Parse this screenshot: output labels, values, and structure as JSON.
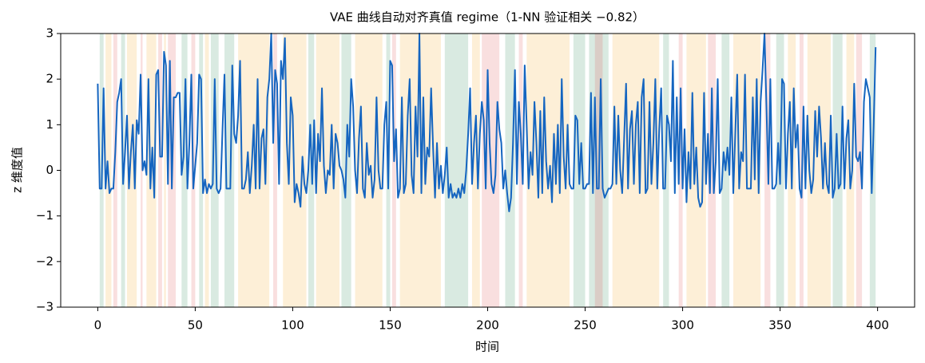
{
  "chart_data": {
    "type": "line",
    "title": "VAE 曲线自动对齐真值 regime（1-NN 验证相关 −0.82）",
    "xlabel": "时间",
    "ylabel": "z 维度值",
    "xlim": [
      -19,
      419
    ],
    "ylim": [
      -3,
      3
    ],
    "xticks": [
      0,
      50,
      100,
      150,
      200,
      250,
      300,
      350,
      400
    ],
    "yticks": [
      {
        "value": -3,
        "label": "−3"
      },
      {
        "value": -2,
        "label": "−2"
      },
      {
        "value": -1,
        "label": "−1"
      },
      0,
      1,
      2,
      3
    ],
    "grid": false,
    "x": [
      0,
      1,
      2,
      3,
      4,
      5,
      6,
      7,
      8,
      9,
      10,
      11,
      12,
      13,
      14,
      15,
      16,
      17,
      18,
      19,
      20,
      21,
      22,
      23,
      24,
      25,
      26,
      27,
      28,
      29,
      30,
      31,
      32,
      33,
      34,
      35,
      36,
      37,
      38,
      39,
      40,
      41,
      42,
      43,
      44,
      45,
      46,
      47,
      48,
      49,
      50,
      51,
      52,
      53,
      54,
      55,
      56,
      57,
      58,
      59,
      60,
      61,
      62,
      63,
      64,
      65,
      66,
      67,
      68,
      69,
      70,
      71,
      72,
      73,
      74,
      75,
      76,
      77,
      78,
      79,
      80,
      81,
      82,
      83,
      84,
      85,
      86,
      87,
      88,
      89,
      90,
      91,
      92,
      93,
      94,
      95,
      96,
      97,
      98,
      99,
      100,
      101,
      102,
      103,
      104,
      105,
      106,
      107,
      108,
      109,
      110,
      111,
      112,
      113,
      114,
      115,
      116,
      117,
      118,
      119,
      120,
      121,
      122,
      123,
      124,
      125,
      126,
      127,
      128,
      129,
      130,
      131,
      132,
      133,
      134,
      135,
      136,
      137,
      138,
      139,
      140,
      141,
      142,
      143,
      144,
      145,
      146,
      147,
      148,
      149,
      150,
      151,
      152,
      153,
      154,
      155,
      156,
      157,
      158,
      159,
      160,
      161,
      162,
      163,
      164,
      165,
      166,
      167,
      168,
      169,
      170,
      171,
      172,
      173,
      174,
      175,
      176,
      177,
      178,
      179,
      180,
      181,
      182,
      183,
      184,
      185,
      186,
      187,
      188,
      189,
      190,
      191,
      192,
      193,
      194,
      195,
      196,
      197,
      198,
      199,
      200,
      201,
      202,
      203,
      204,
      205,
      206,
      207,
      208,
      209,
      210,
      211,
      212,
      213,
      214,
      215,
      216,
      217,
      218,
      219,
      220,
      221,
      222,
      223,
      224,
      225,
      226,
      227,
      228,
      229,
      230,
      231,
      232,
      233,
      234,
      235,
      236,
      237,
      238,
      239,
      240,
      241,
      242,
      243,
      244,
      245,
      246,
      247,
      248,
      249,
      250,
      251,
      252,
      253,
      254,
      255,
      256,
      257,
      258,
      259,
      260,
      261,
      262,
      263,
      264,
      265,
      266,
      267,
      268,
      269,
      270,
      271,
      272,
      273,
      274,
      275,
      276,
      277,
      278,
      279,
      280,
      281,
      282,
      283,
      284,
      285,
      286,
      287,
      288,
      289,
      290,
      291,
      292,
      293,
      294,
      295,
      296,
      297,
      298,
      299,
      300,
      301,
      302,
      303,
      304,
      305,
      306,
      307,
      308,
      309,
      310,
      311,
      312,
      313,
      314,
      315,
      316,
      317,
      318,
      319,
      320,
      321,
      322,
      323,
      324,
      325,
      326,
      327,
      328,
      329,
      330,
      331,
      332,
      333,
      334,
      335,
      336,
      337,
      338,
      339,
      340,
      341,
      342,
      343,
      344,
      345,
      346,
      347,
      348,
      349,
      350,
      351,
      352,
      353,
      354,
      355,
      356,
      357,
      358,
      359,
      360,
      361,
      362,
      363,
      364,
      365,
      366,
      367,
      368,
      369,
      370,
      371,
      372,
      373,
      374,
      375,
      376,
      377,
      378,
      379,
      380,
      381,
      382,
      383,
      384,
      385,
      386,
      387,
      388,
      389,
      390,
      391,
      392,
      393,
      394,
      395,
      396,
      397,
      398,
      399
    ],
    "series": [
      {
        "color": "#1565c0",
        "values": [
          1.9,
          -0.4,
          -0.4,
          1.8,
          -0.4,
          0.2,
          -0.5,
          -0.4,
          -0.4,
          0.4,
          1.5,
          1.7,
          2.0,
          -0.3,
          0.4,
          1.2,
          -0.4,
          0.4,
          1.0,
          -0.4,
          1.1,
          0.8,
          2.1,
          0.0,
          0.2,
          -0.1,
          2.0,
          -0.4,
          0.5,
          -0.6,
          2.1,
          2.2,
          0.3,
          0.3,
          2.6,
          2.3,
          -0.3,
          2.4,
          -0.4,
          1.6,
          1.6,
          1.7,
          1.7,
          -0.1,
          0.3,
          2.0,
          -0.4,
          0.6,
          2.1,
          -0.4,
          0.1,
          0.6,
          2.1,
          2.0,
          -0.5,
          -0.2,
          -0.5,
          -0.3,
          -0.4,
          -0.3,
          2.0,
          -0.4,
          -0.5,
          -0.4,
          0.9,
          2.1,
          -0.4,
          -0.4,
          -0.4,
          2.3,
          0.8,
          0.6,
          1.2,
          2.4,
          -0.4,
          -0.4,
          -0.2,
          0.4,
          -0.5,
          0.1,
          1.0,
          -0.4,
          2.0,
          -0.4,
          0.7,
          0.9,
          -0.3,
          1.6,
          2.0,
          3.0,
          0.6,
          2.2,
          1.9,
          -0.3,
          2.4,
          2.0,
          2.9,
          0.6,
          -0.3,
          1.6,
          1.2,
          -0.7,
          -0.3,
          -0.5,
          -0.8,
          0.3,
          -0.3,
          -0.5,
          0.0,
          1.0,
          -0.3,
          1.1,
          -0.5,
          0.8,
          0.2,
          1.8,
          0.1,
          -0.5,
          0.0,
          -0.1,
          1.0,
          -0.4,
          0.8,
          0.6,
          0.1,
          0.0,
          -0.2,
          -0.6,
          1.0,
          0.3,
          2.0,
          1.4,
          0.0,
          -0.5,
          0.7,
          1.4,
          -0.4,
          -0.6,
          0.6,
          -0.1,
          0.1,
          -0.6,
          -0.2,
          1.6,
          0.0,
          -0.4,
          -0.4,
          1.0,
          1.5,
          -0.4,
          2.4,
          2.3,
          0.2,
          0.9,
          -0.6,
          -0.4,
          1.6,
          -0.5,
          -0.3,
          1.2,
          2.0,
          -0.1,
          -0.5,
          1.4,
          0.3,
          3.0,
          -0.5,
          1.6,
          -0.3,
          0.5,
          0.3,
          1.8,
          0.5,
          -0.6,
          0.6,
          -0.4,
          0.1,
          -0.5,
          -0.1,
          0.5,
          -0.6,
          -0.3,
          -0.6,
          -0.5,
          -0.6,
          -0.4,
          -0.6,
          -0.3,
          -0.5,
          0.0,
          0.8,
          1.8,
          -0.3,
          0.6,
          1.2,
          -0.4,
          0.8,
          1.5,
          1.1,
          -0.4,
          2.2,
          0.6,
          -0.3,
          -0.5,
          -0.1,
          1.5,
          0.9,
          0.6,
          -0.4,
          0.0,
          -0.5,
          -0.9,
          -0.6,
          0.6,
          2.2,
          -0.3,
          1.5,
          0.8,
          -0.3,
          2.3,
          1.0,
          -0.4,
          0.4,
          -0.1,
          1.5,
          0.6,
          -0.6,
          1.3,
          -0.5,
          1.6,
          0.2,
          -0.4,
          0.1,
          -0.7,
          0.8,
          -0.3,
          1.0,
          -0.5,
          2.0,
          0.3,
          -0.4,
          1.0,
          -0.3,
          -0.4,
          -0.4,
          1.2,
          1.1,
          -0.3,
          0.6,
          -0.4,
          -0.4,
          -0.3,
          -0.3,
          1.7,
          -0.5,
          1.6,
          -0.4,
          -0.4,
          2.0,
          -0.4,
          -0.6,
          -0.5,
          -0.4,
          -0.4,
          -0.3,
          1.4,
          -0.3,
          1.2,
          0.0,
          -0.5,
          0.7,
          1.9,
          -0.4,
          0.9,
          1.3,
          -0.3,
          1.0,
          1.5,
          -0.5,
          1.6,
          2.0,
          -0.5,
          -0.4,
          1.5,
          -0.3,
          0.6,
          2.0,
          -0.4,
          0.9,
          1.8,
          -0.4,
          -0.4,
          1.2,
          1.0,
          0.2,
          2.4,
          -0.5,
          1.6,
          -0.3,
          1.8,
          -0.4,
          0.9,
          -0.7,
          0.4,
          -0.4,
          1.7,
          -0.3,
          0.5,
          -0.6,
          -0.8,
          -0.7,
          1.7,
          -0.3,
          0.8,
          -0.5,
          1.8,
          -0.5,
          0.2,
          2.0,
          -0.5,
          -0.4,
          0.4,
          0.0,
          0.5,
          -0.1,
          1.6,
          -0.5,
          0.8,
          2.1,
          -0.4,
          0.4,
          0.2,
          2.1,
          -0.4,
          -0.4,
          -0.4,
          1.6,
          -0.2,
          2.0,
          -0.5,
          1.5,
          2.2,
          3.0,
          1.4,
          -0.3,
          2.0,
          -0.4,
          -0.4,
          -0.3,
          0.6,
          -0.3,
          2.0,
          1.9,
          -0.4,
          0.8,
          1.5,
          -0.4,
          1.8,
          0.5,
          1.0,
          -0.4,
          -0.6,
          1.4,
          -0.4,
          1.2,
          0.0,
          -0.5,
          -0.2,
          1.3,
          0.3,
          1.4,
          0.7,
          -0.4,
          0.6,
          -0.3,
          -0.5,
          1.2,
          -0.6,
          -0.4,
          0.8,
          -0.4,
          -0.3,
          1.4,
          -0.4,
          0.7,
          1.1,
          -0.4,
          0.0,
          1.9,
          0.3,
          0.2,
          0.4,
          -0.4,
          1.5,
          2.0,
          1.8,
          1.6,
          -0.5,
          1.0,
          2.7
        ]
      }
    ],
    "spans": [
      {
        "x0": 1,
        "x1": 3,
        "color": "#2e8b57"
      },
      {
        "x0": 12,
        "x1": 14,
        "color": "#2e8b57"
      },
      {
        "x0": 43,
        "x1": 46,
        "color": "#2e8b57"
      },
      {
        "x0": 52,
        "x1": 54,
        "color": "#2e8b57"
      },
      {
        "x0": 58,
        "x1": 62,
        "color": "#2e8b57"
      },
      {
        "x0": 65,
        "x1": 70,
        "color": "#2e8b57"
      },
      {
        "x0": 108,
        "x1": 111,
        "color": "#2e8b57"
      },
      {
        "x0": 125,
        "x1": 130,
        "color": "#2e8b57"
      },
      {
        "x0": 148,
        "x1": 150,
        "color": "#2e8b57"
      },
      {
        "x0": 178,
        "x1": 190,
        "color": "#2e8b57"
      },
      {
        "x0": 209,
        "x1": 214,
        "color": "#2e8b57"
      },
      {
        "x0": 244,
        "x1": 250,
        "color": "#2e8b57"
      },
      {
        "x0": 252,
        "x1": 262,
        "color": "#2e8b57"
      },
      {
        "x0": 290,
        "x1": 293,
        "color": "#2e8b57"
      },
      {
        "x0": 320,
        "x1": 324,
        "color": "#2e8b57"
      },
      {
        "x0": 348,
        "x1": 352,
        "color": "#2e8b57"
      },
      {
        "x0": 377,
        "x1": 382,
        "color": "#2e8b57"
      },
      {
        "x0": 396,
        "x1": 399,
        "color": "#2e8b57"
      },
      {
        "x0": 8,
        "x1": 10,
        "color": "#e05050"
      },
      {
        "x0": 22,
        "x1": 23,
        "color": "#e05050"
      },
      {
        "x0": 31,
        "x1": 33,
        "color": "#e05050"
      },
      {
        "x0": 36,
        "x1": 40,
        "color": "#e05050"
      },
      {
        "x0": 48,
        "x1": 50,
        "color": "#e05050"
      },
      {
        "x0": 90,
        "x1": 92,
        "color": "#e05050"
      },
      {
        "x0": 151,
        "x1": 153,
        "color": "#e05050"
      },
      {
        "x0": 197,
        "x1": 206,
        "color": "#e05050"
      },
      {
        "x0": 216,
        "x1": 218,
        "color": "#e05050"
      },
      {
        "x0": 255,
        "x1": 259,
        "color": "#e05050"
      },
      {
        "x0": 298,
        "x1": 300,
        "color": "#e05050"
      },
      {
        "x0": 313,
        "x1": 317,
        "color": "#e05050"
      },
      {
        "x0": 342,
        "x1": 345,
        "color": "#e05050"
      },
      {
        "x0": 360,
        "x1": 362,
        "color": "#e05050"
      },
      {
        "x0": 389,
        "x1": 392,
        "color": "#e05050"
      },
      {
        "x0": 4,
        "x1": 7,
        "color": "#f5a623"
      },
      {
        "x0": 15,
        "x1": 20,
        "color": "#f5a623"
      },
      {
        "x0": 25,
        "x1": 30,
        "color": "#f5a623"
      },
      {
        "x0": 34,
        "x1": 35,
        "color": "#f5a623"
      },
      {
        "x0": 55,
        "x1": 57,
        "color": "#f5a623"
      },
      {
        "x0": 72,
        "x1": 88,
        "color": "#f5a623"
      },
      {
        "x0": 95,
        "x1": 107,
        "color": "#f5a623"
      },
      {
        "x0": 112,
        "x1": 124,
        "color": "#f5a623"
      },
      {
        "x0": 132,
        "x1": 146,
        "color": "#f5a623"
      },
      {
        "x0": 155,
        "x1": 176,
        "color": "#f5a623"
      },
      {
        "x0": 192,
        "x1": 196,
        "color": "#f5a623"
      },
      {
        "x0": 220,
        "x1": 242,
        "color": "#f5a623"
      },
      {
        "x0": 264,
        "x1": 288,
        "color": "#f5a623"
      },
      {
        "x0": 302,
        "x1": 312,
        "color": "#f5a623"
      },
      {
        "x0": 326,
        "x1": 340,
        "color": "#f5a623"
      },
      {
        "x0": 354,
        "x1": 358,
        "color": "#f5a623"
      },
      {
        "x0": 364,
        "x1": 376,
        "color": "#f5a623"
      },
      {
        "x0": 384,
        "x1": 388,
        "color": "#f5a623"
      }
    ]
  }
}
